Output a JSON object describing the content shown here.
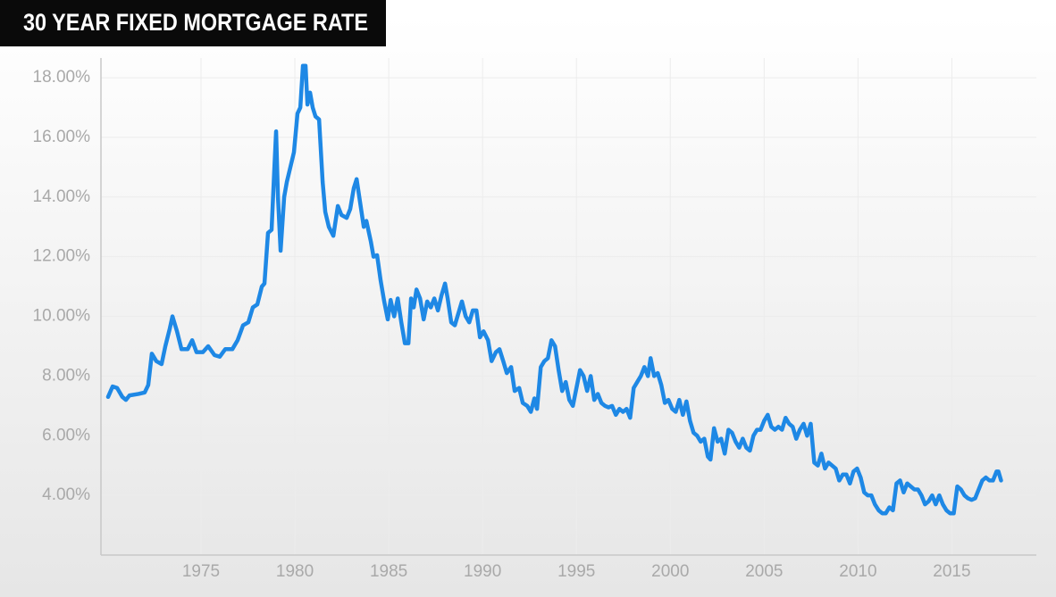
{
  "chart_data": {
    "type": "line",
    "title": "30 YEAR FIXED MORTGAGE RATE",
    "x": [
      1970.05,
      1970.29,
      1970.53,
      1970.81,
      1971.0,
      1971.19,
      1971.67,
      1972.0,
      1972.19,
      1972.38,
      1972.62,
      1972.9,
      1973.1,
      1973.34,
      1973.48,
      1973.72,
      1973.96,
      1974.29,
      1974.53,
      1974.76,
      1975.1,
      1975.38,
      1975.72,
      1976.0,
      1976.29,
      1976.67,
      1976.95,
      1977.24,
      1977.52,
      1977.76,
      1978.0,
      1978.24,
      1978.38,
      1978.57,
      1978.76,
      1978.91,
      1979.0,
      1979.1,
      1979.24,
      1979.43,
      1979.57,
      1979.76,
      1979.95,
      1980.14,
      1980.29,
      1980.43,
      1980.57,
      1980.67,
      1980.81,
      1980.95,
      1981.1,
      1981.29,
      1981.48,
      1981.62,
      1981.81,
      1982.05,
      1982.29,
      1982.48,
      1982.76,
      1982.95,
      1983.14,
      1983.29,
      1983.48,
      1983.67,
      1983.81,
      1984.05,
      1984.19,
      1984.38,
      1984.57,
      1984.76,
      1984.95,
      1985.1,
      1985.29,
      1985.48,
      1985.67,
      1985.86,
      1986.05,
      1986.19,
      1986.33,
      1986.48,
      1986.67,
      1986.86,
      1987.05,
      1987.24,
      1987.43,
      1987.62,
      1987.81,
      1988.0,
      1988.14,
      1988.33,
      1988.52,
      1988.71,
      1988.9,
      1989.1,
      1989.29,
      1989.48,
      1989.67,
      1989.86,
      1990.05,
      1990.29,
      1990.48,
      1990.71,
      1990.9,
      1991.1,
      1991.29,
      1991.52,
      1991.71,
      1991.95,
      1992.14,
      1992.38,
      1992.57,
      1992.76,
      1992.9,
      1993.1,
      1993.29,
      1993.48,
      1993.67,
      1993.86,
      1994.05,
      1994.24,
      1994.43,
      1994.62,
      1994.81,
      1995.0,
      1995.19,
      1995.38,
      1995.57,
      1995.76,
      1995.95,
      1996.14,
      1996.33,
      1996.52,
      1996.71,
      1996.9,
      1997.1,
      1997.29,
      1997.48,
      1997.67,
      1997.86,
      1998.05,
      1998.24,
      1998.43,
      1998.62,
      1998.81,
      1998.95,
      1999.14,
      1999.33,
      1999.52,
      1999.71,
      1999.9,
      2000.1,
      2000.29,
      2000.48,
      2000.67,
      2000.86,
      2001.05,
      2001.24,
      2001.43,
      2001.62,
      2001.81,
      2002.0,
      2002.14,
      2002.33,
      2002.52,
      2002.71,
      2002.9,
      2003.1,
      2003.29,
      2003.48,
      2003.67,
      2003.86,
      2004.05,
      2004.24,
      2004.43,
      2004.62,
      2004.81,
      2005.0,
      2005.19,
      2005.38,
      2005.57,
      2005.76,
      2005.95,
      2006.14,
      2006.33,
      2006.52,
      2006.71,
      2006.9,
      2007.1,
      2007.29,
      2007.48,
      2007.67,
      2007.86,
      2008.05,
      2008.24,
      2008.43,
      2008.62,
      2008.81,
      2009.0,
      2009.19,
      2009.38,
      2009.57,
      2009.76,
      2009.95,
      2010.14,
      2010.33,
      2010.52,
      2010.71,
      2010.9,
      2011.1,
      2011.29,
      2011.48,
      2011.67,
      2011.86,
      2012.05,
      2012.24,
      2012.43,
      2012.62,
      2012.81,
      2013.0,
      2013.19,
      2013.38,
      2013.57,
      2013.76,
      2013.95,
      2014.14,
      2014.33,
      2014.52,
      2014.71,
      2014.9,
      2015.1,
      2015.29,
      2015.48,
      2015.67,
      2015.86,
      2016.05,
      2016.24,
      2016.43,
      2016.62,
      2016.81,
      2017.0,
      2017.19,
      2017.38,
      2017.48,
      2017.62
    ],
    "values": [
      7.3,
      7.65,
      7.6,
      7.3,
      7.2,
      7.35,
      7.4,
      7.45,
      7.7,
      8.75,
      8.5,
      8.4,
      9.0,
      9.6,
      10.0,
      9.5,
      8.9,
      8.9,
      9.2,
      8.8,
      8.8,
      9.0,
      8.7,
      8.65,
      8.9,
      8.9,
      9.2,
      9.7,
      9.8,
      10.3,
      10.4,
      11.0,
      11.1,
      12.8,
      12.9,
      15.0,
      16.2,
      14.0,
      12.2,
      14.0,
      14.5,
      15.0,
      15.5,
      16.8,
      17.0,
      18.4,
      18.4,
      17.1,
      17.5,
      17.0,
      16.7,
      16.6,
      14.5,
      13.5,
      13.0,
      12.7,
      13.7,
      13.4,
      13.3,
      13.6,
      14.3,
      14.6,
      13.8,
      13.0,
      13.2,
      12.5,
      12.0,
      12.05,
      11.2,
      10.5,
      9.9,
      10.55,
      10.0,
      10.6,
      9.8,
      9.1,
      9.1,
      10.6,
      10.3,
      10.9,
      10.6,
      9.9,
      10.5,
      10.3,
      10.6,
      10.2,
      10.7,
      11.1,
      10.6,
      9.8,
      9.7,
      10.1,
      10.5,
      10.0,
      9.8,
      10.2,
      10.2,
      9.3,
      9.5,
      9.2,
      8.5,
      8.8,
      8.9,
      8.5,
      8.1,
      8.3,
      7.5,
      7.6,
      7.1,
      7.0,
      6.8,
      7.25,
      6.9,
      8.3,
      8.5,
      8.6,
      9.2,
      9.0,
      8.2,
      7.5,
      7.8,
      7.2,
      7.0,
      7.6,
      8.2,
      8.0,
      7.5,
      8.0,
      7.2,
      7.4,
      7.1,
      7.0,
      6.95,
      7.0,
      6.7,
      6.9,
      6.8,
      6.9,
      6.6,
      7.6,
      7.8,
      8.0,
      8.3,
      8.0,
      8.6,
      8.0,
      8.1,
      7.7,
      7.1,
      7.2,
      6.9,
      6.8,
      7.2,
      6.7,
      7.15,
      6.5,
      6.1,
      6.0,
      5.8,
      5.9,
      5.3,
      5.2,
      6.25,
      5.8,
      5.9,
      5.4,
      6.2,
      6.1,
      5.8,
      5.6,
      5.9,
      5.6,
      5.5,
      6.0,
      6.2,
      6.2,
      6.5,
      6.7,
      6.3,
      6.2,
      6.3,
      6.2,
      6.6,
      6.4,
      6.3,
      5.9,
      6.2,
      6.4,
      6.0,
      6.4,
      5.1,
      5.0,
      5.4,
      4.9,
      5.1,
      5.0,
      4.9,
      4.5,
      4.7,
      4.7,
      4.4,
      4.8,
      4.9,
      4.6,
      4.1,
      4.0,
      4.0,
      3.7,
      3.5,
      3.4,
      3.4,
      3.6,
      3.5,
      4.4,
      4.5,
      4.1,
      4.4,
      4.3,
      4.2,
      4.2,
      4.0,
      3.7,
      3.8,
      4.0,
      3.7,
      4.0,
      3.7,
      3.5,
      3.4,
      3.4,
      4.3,
      4.2,
      4.0,
      3.9,
      3.85,
      3.9,
      4.2,
      4.5,
      4.6,
      4.5,
      4.5,
      4.8,
      4.8,
      4.5
    ],
    "color": "#1e88e5",
    "xlim": [
      1969.67,
      2019.5
    ],
    "ylim": [
      2,
      18.66
    ],
    "xticks": [
      1975,
      1980,
      1985,
      1990,
      1995,
      2000,
      2005,
      2010,
      2015
    ],
    "yticks": [
      {
        "value": 4,
        "label": "4.00%"
      },
      {
        "value": 6,
        "label": "6.00%"
      },
      {
        "value": 8,
        "label": "8.00%"
      },
      {
        "value": 10,
        "label": "10.00%"
      },
      {
        "value": 12,
        "label": "12.00%"
      },
      {
        "value": 14,
        "label": "14.00%"
      },
      {
        "value": 16,
        "label": "16.00%"
      },
      {
        "value": 18,
        "label": "18.00%"
      }
    ],
    "grid": true
  }
}
